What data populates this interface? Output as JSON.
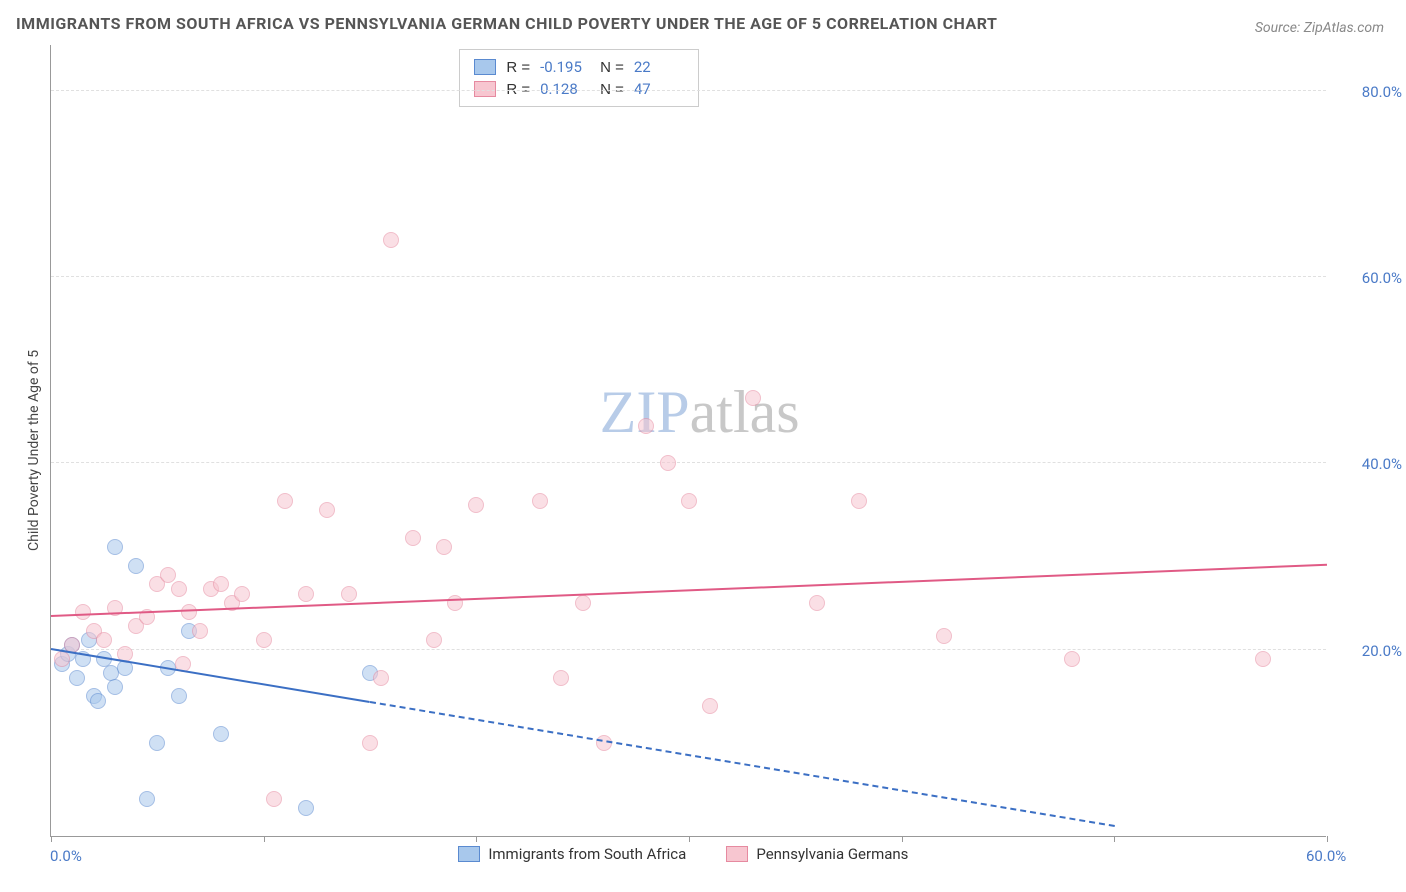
{
  "title": "IMMIGRANTS FROM SOUTH AFRICA VS PENNSYLVANIA GERMAN CHILD POVERTY UNDER THE AGE OF 5 CORRELATION CHART",
  "title_fontsize": 16,
  "source": "Source: ZipAtlas.com",
  "source_fontsize": 14,
  "y_axis_title": "Child Poverty Under the Age of 5",
  "axis_title_fontsize": 14,
  "watermark_zip": "ZIP",
  "watermark_atlas": "atlas",
  "watermark_fontsize": 60,
  "watermark_color_zip": "#b8cce8",
  "chart": {
    "type": "scatter",
    "background_color": "#ffffff",
    "grid_color": "#e0e0e0",
    "axis_color": "#999999",
    "xlim": [
      0,
      60
    ],
    "ylim": [
      0,
      85
    ],
    "y_ticks": [
      20,
      40,
      60,
      80
    ],
    "y_tick_labels": [
      "20.0%",
      "40.0%",
      "60.0%",
      "80.0%"
    ],
    "x_ticks": [
      0,
      10,
      20,
      30,
      40,
      50,
      60
    ],
    "x_tick_labels": [
      "0.0%",
      "",
      "",
      "",
      "",
      "",
      "60.0%"
    ],
    "dot_radius": 8,
    "dot_opacity": 0.55,
    "series": [
      {
        "name": "Immigrants from South Africa",
        "fill": "#a8c8ec",
        "stroke": "#5a8ad0",
        "R": "-0.195",
        "N": "22",
        "trend": {
          "x1": 0,
          "y1": 20,
          "x2": 50,
          "y2": 1,
          "solid_until_x": 15,
          "color": "#3b6fc4",
          "width": 2.2
        },
        "points": [
          [
            0.5,
            18.5
          ],
          [
            0.8,
            19.5
          ],
          [
            1.0,
            20.5
          ],
          [
            1.2,
            17
          ],
          [
            1.5,
            19
          ],
          [
            1.8,
            21
          ],
          [
            2,
            15
          ],
          [
            2.2,
            14.5
          ],
          [
            2.5,
            19
          ],
          [
            2.8,
            17.5
          ],
          [
            3,
            16
          ],
          [
            3.5,
            18
          ],
          [
            3,
            31
          ],
          [
            4,
            29
          ],
          [
            4.5,
            4
          ],
          [
            5,
            10
          ],
          [
            5.5,
            18
          ],
          [
            6,
            15
          ],
          [
            6.5,
            22
          ],
          [
            8,
            11
          ],
          [
            12,
            3
          ],
          [
            15,
            17.5
          ]
        ]
      },
      {
        "name": "Pennsylvania Germans",
        "fill": "#f7c6d0",
        "stroke": "#e68aa0",
        "R": "0.128",
        "N": "47",
        "trend": {
          "x1": 0,
          "y1": 23.5,
          "x2": 60,
          "y2": 29,
          "solid_until_x": 60,
          "color": "#e05a85",
          "width": 2.2
        },
        "points": [
          [
            0.5,
            19
          ],
          [
            1,
            20.5
          ],
          [
            1.5,
            24
          ],
          [
            2,
            22
          ],
          [
            2.5,
            21
          ],
          [
            3,
            24.5
          ],
          [
            3.5,
            19.5
          ],
          [
            4,
            22.5
          ],
          [
            5,
            27
          ],
          [
            5.5,
            28
          ],
          [
            6,
            26.5
          ],
          [
            6.5,
            24
          ],
          [
            7,
            22
          ],
          [
            7.5,
            26.5
          ],
          [
            8,
            27
          ],
          [
            8.5,
            25
          ],
          [
            9,
            26
          ],
          [
            10,
            21
          ],
          [
            10.5,
            4
          ],
          [
            11,
            36
          ],
          [
            13,
            35
          ],
          [
            14,
            26
          ],
          [
            15,
            10
          ],
          [
            15.5,
            17
          ],
          [
            16,
            64
          ],
          [
            17,
            32
          ],
          [
            18,
            21
          ],
          [
            18.5,
            31
          ],
          [
            19,
            25
          ],
          [
            20,
            35.5
          ],
          [
            23,
            36
          ],
          [
            24,
            17
          ],
          [
            25,
            25
          ],
          [
            26,
            10
          ],
          [
            28,
            44
          ],
          [
            29,
            40
          ],
          [
            30,
            36
          ],
          [
            31,
            14
          ],
          [
            33,
            47
          ],
          [
            36,
            25
          ],
          [
            38,
            36
          ],
          [
            42,
            21.5
          ],
          [
            48,
            19
          ],
          [
            57,
            19
          ],
          [
            4.5,
            23.5
          ],
          [
            6.2,
            18.5
          ],
          [
            12,
            26
          ]
        ]
      }
    ]
  },
  "legend_bottom": [
    {
      "label": "Immigrants from South Africa",
      "fill": "#a8c8ec",
      "stroke": "#5a8ad0"
    },
    {
      "label": "Pennsylvania Germans",
      "fill": "#f7c6d0",
      "stroke": "#e68aa0"
    }
  ]
}
